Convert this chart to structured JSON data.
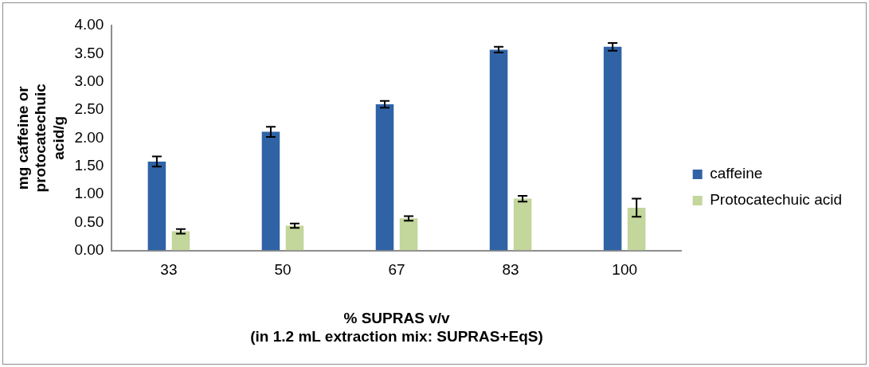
{
  "chart_data": {
    "type": "bar",
    "xlabel": "% SUPRAS v/v\n(in 1.2 mL extraction mix: SUPRAS+EqS)",
    "ylabel": "mg caffeine or protocatechuic acid/g",
    "categories": [
      "33",
      "50",
      "67",
      "83",
      "100"
    ],
    "series": [
      {
        "name": "caffeine",
        "color": "#2f63a6",
        "values": [
          1.58,
          2.11,
          2.6,
          3.57,
          3.62
        ],
        "errors": [
          0.09,
          0.09,
          0.06,
          0.05,
          0.07
        ]
      },
      {
        "name": "Protocatechuic acid",
        "color": "#c3d69b",
        "values": [
          0.34,
          0.44,
          0.57,
          0.92,
          0.76
        ],
        "errors": [
          0.04,
          0.04,
          0.04,
          0.05,
          0.16
        ]
      }
    ],
    "ylim": [
      0,
      4
    ],
    "yticks": [
      {
        "value": 0,
        "label": "0.00"
      },
      {
        "value": 0.5,
        "label": "0.50"
      },
      {
        "value": 1,
        "label": "1.00"
      },
      {
        "value": 1.5,
        "label": "1.50"
      },
      {
        "value": 2,
        "label": "2.00"
      },
      {
        "value": 2.5,
        "label": "2.50"
      },
      {
        "value": 3,
        "label": "3.00"
      },
      {
        "value": 3.5,
        "label": "3.50"
      },
      {
        "value": 4,
        "label": "4.00"
      }
    ],
    "grid": false,
    "legend": "right"
  }
}
